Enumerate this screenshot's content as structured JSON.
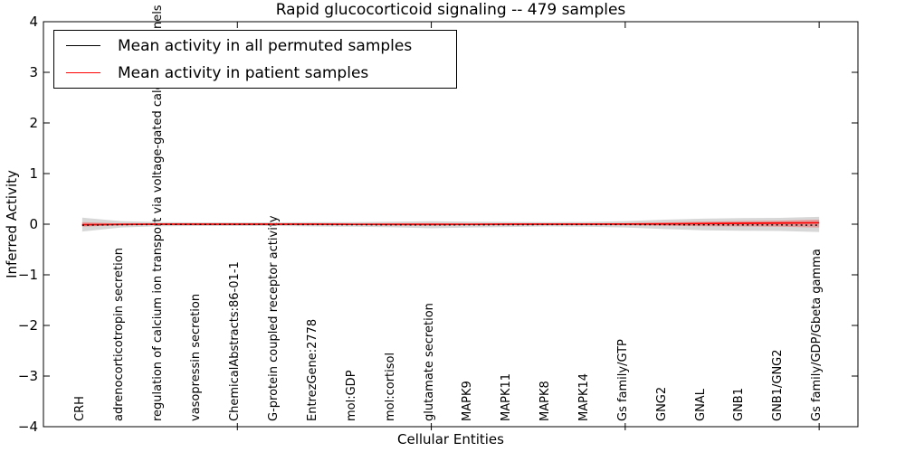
{
  "figure": {
    "title": "Rapid glucocorticoid signaling -- 479 samples",
    "xlabel": "Cellular Entities",
    "ylabel": "Inferred Activity"
  },
  "legend": {
    "entries": [
      {
        "label": "Mean activity in all permuted samples",
        "color": "#000000",
        "linestyle": "dotted"
      },
      {
        "label": "Mean activity in patient samples",
        "color": "#ff0000",
        "linestyle": "solid"
      }
    ]
  },
  "chart_data": {
    "type": "line",
    "title": "Rapid glucocorticoid signaling -- 479 samples",
    "xlabel": "Cellular Entities",
    "ylabel": "Inferred Activity",
    "ylim": [
      -4,
      4
    ],
    "ytick_labels": [
      "4",
      "3",
      "2",
      "1",
      "0",
      "−1",
      "−2",
      "−3",
      "−4"
    ],
    "grid": false,
    "legend_position": "upper left",
    "categories": [
      "CRH",
      "adrenocorticotropin secretion",
      "regulation of calcium ion transport via voltage-gated calcium channels",
      "vasopressin secretion",
      "ChemicalAbstracts:86-01-1",
      "G-protein coupled receptor activity",
      "EntrezGene:2778",
      "mol:GDP",
      "mol:cortisol",
      "glutamate secretion",
      "MAPK9",
      "MAPK11",
      "MAPK8",
      "MAPK14",
      "Gs family/GTP",
      "GNG2",
      "GNAL",
      "GNB1",
      "GNB1/GNG2",
      "Gs family/GDP/Gbeta gamma"
    ],
    "xtick_marks_at_indices": [
      4,
      9,
      14,
      19
    ],
    "series": [
      {
        "name": "Mean activity in all permuted samples",
        "color": "#000000",
        "linestyle": "dotted",
        "values": [
          -0.02,
          -0.01,
          -0.005,
          -0.005,
          -0.005,
          -0.005,
          -0.008,
          -0.01,
          -0.012,
          -0.015,
          -0.012,
          -0.01,
          -0.008,
          -0.008,
          -0.008,
          -0.01,
          -0.012,
          -0.015,
          -0.015,
          -0.02
        ]
      },
      {
        "name": "Mean activity in patient samples",
        "color": "#ff0000",
        "linestyle": "solid",
        "values": [
          -0.01,
          -0.005,
          0,
          0,
          0,
          0,
          0,
          -0.003,
          -0.005,
          -0.005,
          -0.003,
          0,
          0,
          0,
          0.002,
          0.005,
          0.012,
          0.018,
          0.022,
          0.028
        ]
      }
    ],
    "bands": [
      {
        "name": "permuted samples range",
        "color": "#c9c9c9",
        "opacity": 0.75,
        "upper": [
          0.13,
          0.06,
          0.04,
          0.035,
          0.035,
          0.035,
          0.04,
          0.04,
          0.05,
          0.06,
          0.05,
          0.045,
          0.04,
          0.045,
          0.06,
          0.09,
          0.11,
          0.12,
          0.125,
          0.145
        ],
        "lower": [
          -0.145,
          -0.065,
          -0.04,
          -0.035,
          -0.035,
          -0.035,
          -0.045,
          -0.05,
          -0.06,
          -0.08,
          -0.065,
          -0.055,
          -0.045,
          -0.05,
          -0.065,
          -0.095,
          -0.12,
          -0.13,
          -0.135,
          -0.155
        ]
      },
      {
        "name": "patient samples range",
        "color": "#ff0000",
        "opacity": 0.28,
        "upper": [
          0.04,
          0.015,
          0.01,
          0.01,
          0.01,
          0.01,
          0.01,
          0.01,
          0.015,
          0.02,
          0.015,
          0.015,
          0.01,
          0.015,
          0.02,
          0.035,
          0.05,
          0.06,
          0.07,
          0.09
        ],
        "lower": [
          -0.05,
          -0.02,
          -0.01,
          -0.01,
          -0.01,
          -0.01,
          -0.01,
          -0.015,
          -0.02,
          -0.025,
          -0.02,
          -0.02,
          -0.015,
          -0.015,
          -0.02,
          -0.03,
          -0.04,
          -0.045,
          -0.05,
          -0.065
        ]
      }
    ]
  }
}
